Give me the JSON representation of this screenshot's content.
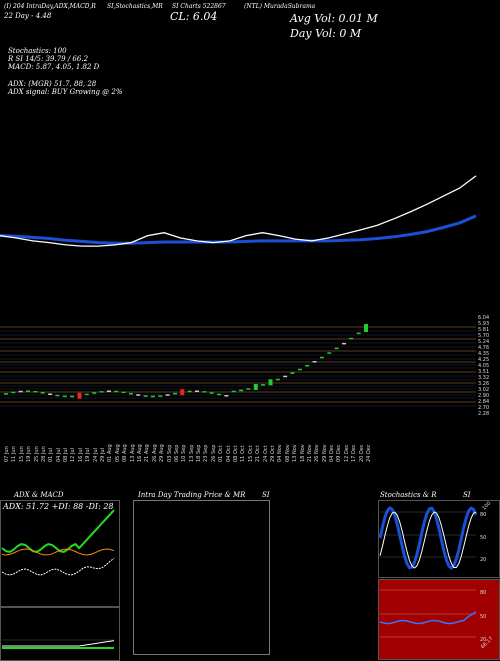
{
  "header": {
    "line1_left": "(I) 204 IntraDay,ADX,MACD,R",
    "line1_mid": "SI,Stochastics,MR",
    "line1_mid2": "SI Charts 522867",
    "line1_right": "(NTL) MuradaSubrama",
    "line2_left": "22 Day - 4.48",
    "close_text": "CL: 6.04",
    "avg_vol": "Avg Vol: 0.01 M",
    "day_vol": "Day Vol: 0   M",
    "stochastics": "Stochastics: 100",
    "rsi": "R                   SI 14/5: 39.79 / 66.2",
    "macd": "MACD: 5.87,  4.05,  1.82  D",
    "adx": "ADX:                              (MGR) 51.7,  88,  28",
    "adx_signal": "ADX  signal:                                              BUY Growing @ 2%"
  },
  "price_axis_labels": [
    "6.04",
    "5.93",
    "5.81",
    "5.70",
    "5.24",
    "4.76",
    "4.35",
    "4.25",
    "4.05",
    "3.51",
    "3.32",
    "3.26",
    "3.02",
    "2.90",
    "2.84",
    "2.70",
    "2.28"
  ],
  "date_labels": [
    "07 Jun",
    "11 Jun",
    "15 Jun",
    "19 Jun",
    "25 Jun",
    "28 Jun",
    "01 Jul",
    "04 Jul",
    "08 Jul",
    "12 Jul",
    "16 Jul",
    "19 Jul",
    "24 Jul",
    "29 Jul",
    "01 Aug",
    "05 Aug",
    "08 Aug",
    "13 Aug",
    "16 Aug",
    "21 Aug",
    "26 Aug",
    "29 Aug",
    "03 Sep",
    "06 Sep",
    "10 Sep",
    "13 Sep",
    "18 Sep",
    "23 Sep",
    "26 Sep",
    "01 Oct",
    "04 Oct",
    "08 Oct",
    "11 Oct",
    "15 Oct",
    "21 Oct",
    "24 Oct",
    "29 Oct",
    "04 Nov",
    "08 Nov",
    "13 Nov",
    "18 Nov",
    "21 Nov",
    "26 Nov",
    "29 Nov",
    "04 Dec",
    "09 Dec",
    "12 Dec",
    "17 Dec",
    "20 Dec",
    "24 Dec"
  ],
  "panels": {
    "adx_macd_title": "ADX  & MACD",
    "adx_readout": "ADX: 51.72  +DI: 88  -DI: 28",
    "intraday_title": "Intra  Day Trading Price  & MR",
    "intraday_title2": "SI",
    "stoch_title": "Stochastics & R",
    "stoch_title2": "SI",
    "stoch_ticks": [
      "80",
      "50",
      "20"
    ],
    "stoch_badge": "100",
    "rsi_ticks": [
      "80",
      "50",
      "20"
    ],
    "rsi_badge": "66.17"
  },
  "colors": {
    "background": "#000000",
    "ema_blue": "#1a4fd6",
    "price_white": "#ffffff",
    "candle_up": "#22cc33",
    "candle_down": "#ee2222",
    "level_line": "#b87a3c",
    "adx_green": "#22dd22",
    "rsi_red_bg": "#a00000"
  },
  "chart_data": [
    {
      "type": "line",
      "title": "Price and moving average",
      "series": [
        {
          "name": "price",
          "values": [
            3.02,
            2.98,
            2.93,
            2.9,
            2.86,
            2.84,
            2.84,
            2.86,
            2.9,
            3.02,
            3.07,
            2.98,
            2.93,
            2.9,
            2.93,
            3.02,
            3.07,
            3.02,
            2.96,
            2.93,
            2.98,
            3.05,
            3.12,
            3.2,
            3.31,
            3.43,
            3.56,
            3.7,
            3.84,
            4.05
          ]
        },
        {
          "name": "ema",
          "values": [
            3.02,
            3.01,
            2.99,
            2.97,
            2.94,
            2.92,
            2.9,
            2.89,
            2.89,
            2.9,
            2.91,
            2.91,
            2.91,
            2.91,
            2.91,
            2.92,
            2.93,
            2.93,
            2.93,
            2.93,
            2.93,
            2.94,
            2.95,
            2.97,
            3.0,
            3.04,
            3.09,
            3.16,
            3.24,
            3.36
          ]
        }
      ]
    },
    {
      "type": "bar",
      "title": "Daily candles",
      "categories": [
        "07 Jun",
        "24 Dec"
      ],
      "values": [
        3.02,
        6.04
      ],
      "ylim": [
        2.28,
        6.04
      ]
    }
  ]
}
